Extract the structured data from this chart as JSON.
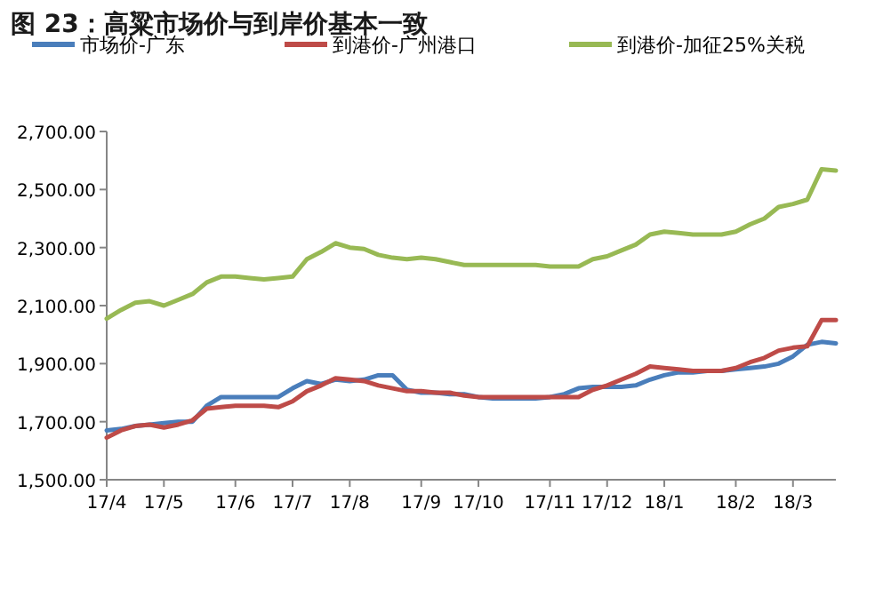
{
  "chart_data": {
    "type": "line",
    "title": "图 23：高粱市场价与到岸价基本一致",
    "categories": [
      "17/4",
      null,
      null,
      null,
      "17/5",
      null,
      null,
      null,
      null,
      "17/6",
      null,
      null,
      null,
      "17/7",
      null,
      null,
      null,
      "17/8",
      null,
      null,
      null,
      null,
      "17/9",
      null,
      null,
      null,
      "17/10",
      null,
      null,
      null,
      null,
      "17/11",
      null,
      null,
      null,
      "17/12",
      null,
      null,
      null,
      "18/1",
      null,
      null,
      null,
      null,
      "18/2",
      null,
      null,
      null,
      "18/3",
      null,
      null,
      null
    ],
    "ylim": [
      1500,
      2700
    ],
    "yticks": [
      {
        "value": 1500,
        "label": "1,500.00"
      },
      {
        "value": 1700,
        "label": "1,700.00"
      },
      {
        "value": 1900,
        "label": "1,900.00"
      },
      {
        "value": 2100,
        "label": "2,100.00"
      },
      {
        "value": 2300,
        "label": "2,300.00"
      },
      {
        "value": 2500,
        "label": "2,500.00"
      },
      {
        "value": 2700,
        "label": "2,700.00"
      }
    ],
    "grid": false,
    "legend": "top",
    "marker": "none",
    "line_style": "solid",
    "series": [
      {
        "name": "市场价-广东",
        "color": "#4a7ebb",
        "values": [
          1670,
          1675,
          1685,
          1690,
          1695,
          1700,
          1700,
          1755,
          1785,
          1785,
          1785,
          1785,
          1785,
          1815,
          1840,
          1830,
          1845,
          1840,
          1845,
          1860,
          1860,
          1810,
          1800,
          1800,
          1795,
          1795,
          1785,
          1780,
          1780,
          1780,
          1780,
          1785,
          1795,
          1815,
          1820,
          1820,
          1820,
          1825,
          1845,
          1860,
          1870,
          1870,
          1875,
          1875,
          1880,
          1885,
          1890,
          1900,
          1925,
          1965,
          1975,
          1970
        ]
      },
      {
        "name": "到港价-广州港口",
        "color": "#be4b48",
        "values": [
          1645,
          1670,
          1685,
          1690,
          1680,
          1690,
          1705,
          1745,
          1750,
          1755,
          1755,
          1755,
          1750,
          1770,
          1805,
          1825,
          1850,
          1845,
          1840,
          1825,
          1815,
          1805,
          1805,
          1800,
          1800,
          1790,
          1785,
          1785,
          1785,
          1785,
          1785,
          1785,
          1785,
          1785,
          1810,
          1825,
          1845,
          1865,
          1890,
          1885,
          1880,
          1875,
          1875,
          1875,
          1885,
          1905,
          1920,
          1945,
          1955,
          1960,
          2050,
          2050
        ]
      },
      {
        "name": "到港价-加征25%关税",
        "color": "#98b954",
        "values": [
          2055,
          2085,
          2110,
          2115,
          2100,
          2120,
          2140,
          2180,
          2200,
          2200,
          2195,
          2190,
          2195,
          2200,
          2260,
          2285,
          2315,
          2300,
          2295,
          2275,
          2265,
          2260,
          2265,
          2260,
          2250,
          2240,
          2240,
          2240,
          2240,
          2240,
          2240,
          2235,
          2235,
          2235,
          2260,
          2270,
          2290,
          2310,
          2345,
          2355,
          2350,
          2345,
          2345,
          2345,
          2355,
          2380,
          2400,
          2440,
          2450,
          2465,
          2570,
          2565
        ]
      }
    ]
  }
}
